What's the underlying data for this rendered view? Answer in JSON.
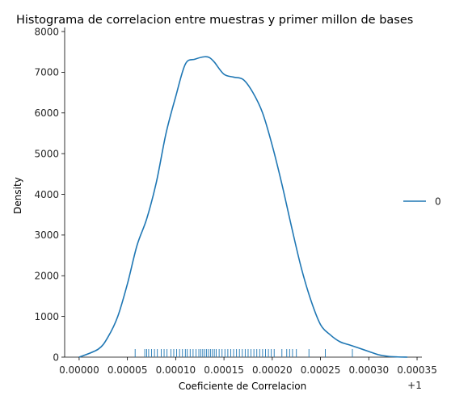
{
  "chart_data": {
    "type": "line",
    "title": "Histograma de correlacion entre muestras y primer millon de bases",
    "xlabel": "Coeficiente de Correlacion",
    "ylabel": "Density",
    "x_offset_label": "+1",
    "xlim": [
      -1.5e-05,
      0.000355
    ],
    "ylim": [
      0,
      8100
    ],
    "xticks": [
      0.0,
      5e-05,
      0.0001,
      0.00015,
      0.0002,
      0.00025,
      0.0003,
      0.00035
    ],
    "xtick_labels": [
      "0.00000",
      "0.00005",
      "0.00010",
      "0.00015",
      "0.00020",
      "0.00025",
      "0.00030",
      "0.00035"
    ],
    "yticks": [
      0,
      1000,
      2000,
      3000,
      4000,
      5000,
      6000,
      7000,
      8000
    ],
    "ytick_labels": [
      "0",
      "1000",
      "2000",
      "3000",
      "4000",
      "5000",
      "6000",
      "7000",
      "8000"
    ],
    "grid": false,
    "legend_position": "right",
    "color": "#1f77b4",
    "series": [
      {
        "name": "0",
        "x": [
          0.0,
          2e-05,
          3e-05,
          4e-05,
          5e-05,
          6e-05,
          7e-05,
          8e-05,
          9e-05,
          0.0001,
          0.00011,
          0.00012,
          0.00013,
          0.000135,
          0.00014,
          0.00015,
          0.00016,
          0.00017,
          0.00018,
          0.00019,
          0.0002,
          0.00021,
          0.00022,
          0.00023,
          0.00024,
          0.00025,
          0.00026,
          0.00027,
          0.00028,
          0.00029,
          0.0003,
          0.00031,
          0.00032,
          0.00033,
          0.00034
        ],
        "y": [
          0,
          200,
          500,
          1000,
          1800,
          2750,
          3400,
          4300,
          5500,
          6400,
          7200,
          7320,
          7380,
          7360,
          7250,
          6950,
          6880,
          6820,
          6500,
          6000,
          5200,
          4250,
          3200,
          2200,
          1400,
          800,
          550,
          380,
          300,
          220,
          140,
          60,
          20,
          5,
          0
        ]
      }
    ],
    "rug": [
      5.8e-05,
      6.8e-05,
      7e-05,
      7.2e-05,
      7.5e-05,
      7.8e-05,
      8.1e-05,
      8.5e-05,
      8.8e-05,
      9.1e-05,
      9.5e-05,
      9.8e-05,
      0.000101,
      0.000104,
      0.000107,
      0.00011,
      0.000112,
      0.000115,
      0.000118,
      0.000121,
      0.000124,
      0.000126,
      0.000128,
      0.00013,
      0.000132,
      0.000134,
      0.000136,
      0.000138,
      0.00014,
      0.000142,
      0.000145,
      0.000148,
      0.000151,
      0.000154,
      0.000157,
      0.00016,
      0.000163,
      0.000166,
      0.000169,
      0.000172,
      0.000175,
      0.000178,
      0.000181,
      0.000184,
      0.000187,
      0.00019,
      0.000193,
      0.000196,
      0.000199,
      0.000202,
      0.00021,
      0.000215,
      0.000218,
      0.000221,
      0.000225,
      0.000238,
      0.000255,
      0.000283
    ]
  }
}
